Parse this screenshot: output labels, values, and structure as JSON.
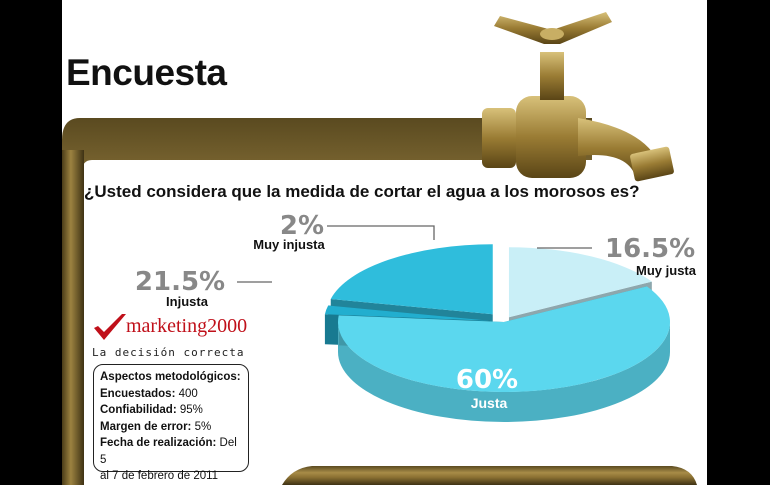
{
  "header": {
    "title": "Encuesta",
    "question": "¿Usted considera que la medida de cortar el agua a los morosos es?"
  },
  "chart_data": {
    "type": "pie",
    "title": "¿Usted considera que la medida de cortar el agua a los morosos es?",
    "categories": [
      "Muy justa",
      "Justa",
      "Muy injusta",
      "Injusta"
    ],
    "values": [
      16.5,
      60,
      2,
      21.5
    ],
    "labels": [
      "16.5%",
      "60%",
      "2%",
      "21.5%"
    ],
    "colors": [
      "#c9eff7",
      "#5bd7ee",
      "#22aecf",
      "#2fbddc"
    ]
  },
  "brand": {
    "name_prefix": "marke",
    "name_suffix": "ting2000",
    "tagline": "La decisión correcta",
    "accent": "#c0101a"
  },
  "methodology": {
    "heading": "Aspectos metodológicos:",
    "rows": [
      {
        "label": "Encuestados:",
        "value": " 400"
      },
      {
        "label": "Confiabilidad:",
        "value": " 95%"
      },
      {
        "label": "Margen de error:",
        "value": " 5%"
      },
      {
        "label": "Fecha de realización:",
        "value": " Del 5"
      }
    ],
    "last_line": "al 7 de febrero de 2011"
  }
}
